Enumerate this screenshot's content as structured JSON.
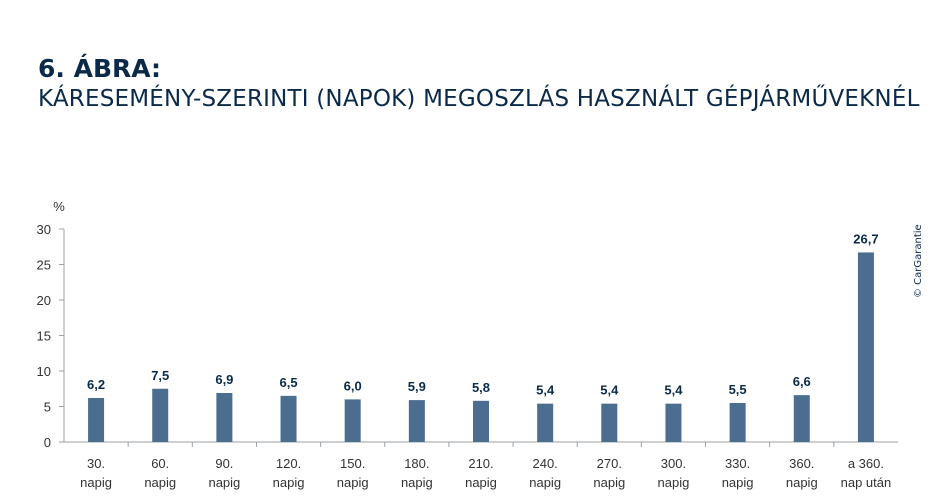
{
  "heading": {
    "figure_number": "6. ÁBRA:",
    "title": "KÁRESEMÉNY-SZERINTI (NAPOK) MEGOSZLÁS HASZNÁLT GÉPJÁRMŰVEKNÉL"
  },
  "credit": "© CarGarantie",
  "colors": {
    "bar": "#4a6d90",
    "text": "#0b2a4a",
    "axis": "#9aa0a6"
  },
  "chart_data": {
    "type": "bar",
    "ylabel": "%",
    "ylim": [
      0,
      30
    ],
    "yticks": [
      "0",
      "5",
      "10",
      "15",
      "20",
      "25",
      "30"
    ],
    "grid": false,
    "categories": [
      [
        "30.",
        "napig"
      ],
      [
        "60.",
        "napig"
      ],
      [
        "90.",
        "napig"
      ],
      [
        "120.",
        "napig"
      ],
      [
        "150.",
        "napig"
      ],
      [
        "180.",
        "napig"
      ],
      [
        "210.",
        "napig"
      ],
      [
        "240.",
        "napig"
      ],
      [
        "270.",
        "napig"
      ],
      [
        "300.",
        "napig"
      ],
      [
        "330.",
        "napig"
      ],
      [
        "360.",
        "napig"
      ],
      [
        "a 360.",
        "nap után"
      ]
    ],
    "values": [
      6.2,
      7.5,
      6.9,
      6.5,
      6.0,
      5.9,
      5.8,
      5.4,
      5.4,
      5.4,
      5.5,
      6.6,
      26.7
    ],
    "value_labels": [
      "6,2",
      "7,5",
      "6,9",
      "6,5",
      "6,0",
      "5,9",
      "5,8",
      "5,4",
      "5,4",
      "5,4",
      "5,5",
      "6,6",
      "26,7"
    ]
  }
}
